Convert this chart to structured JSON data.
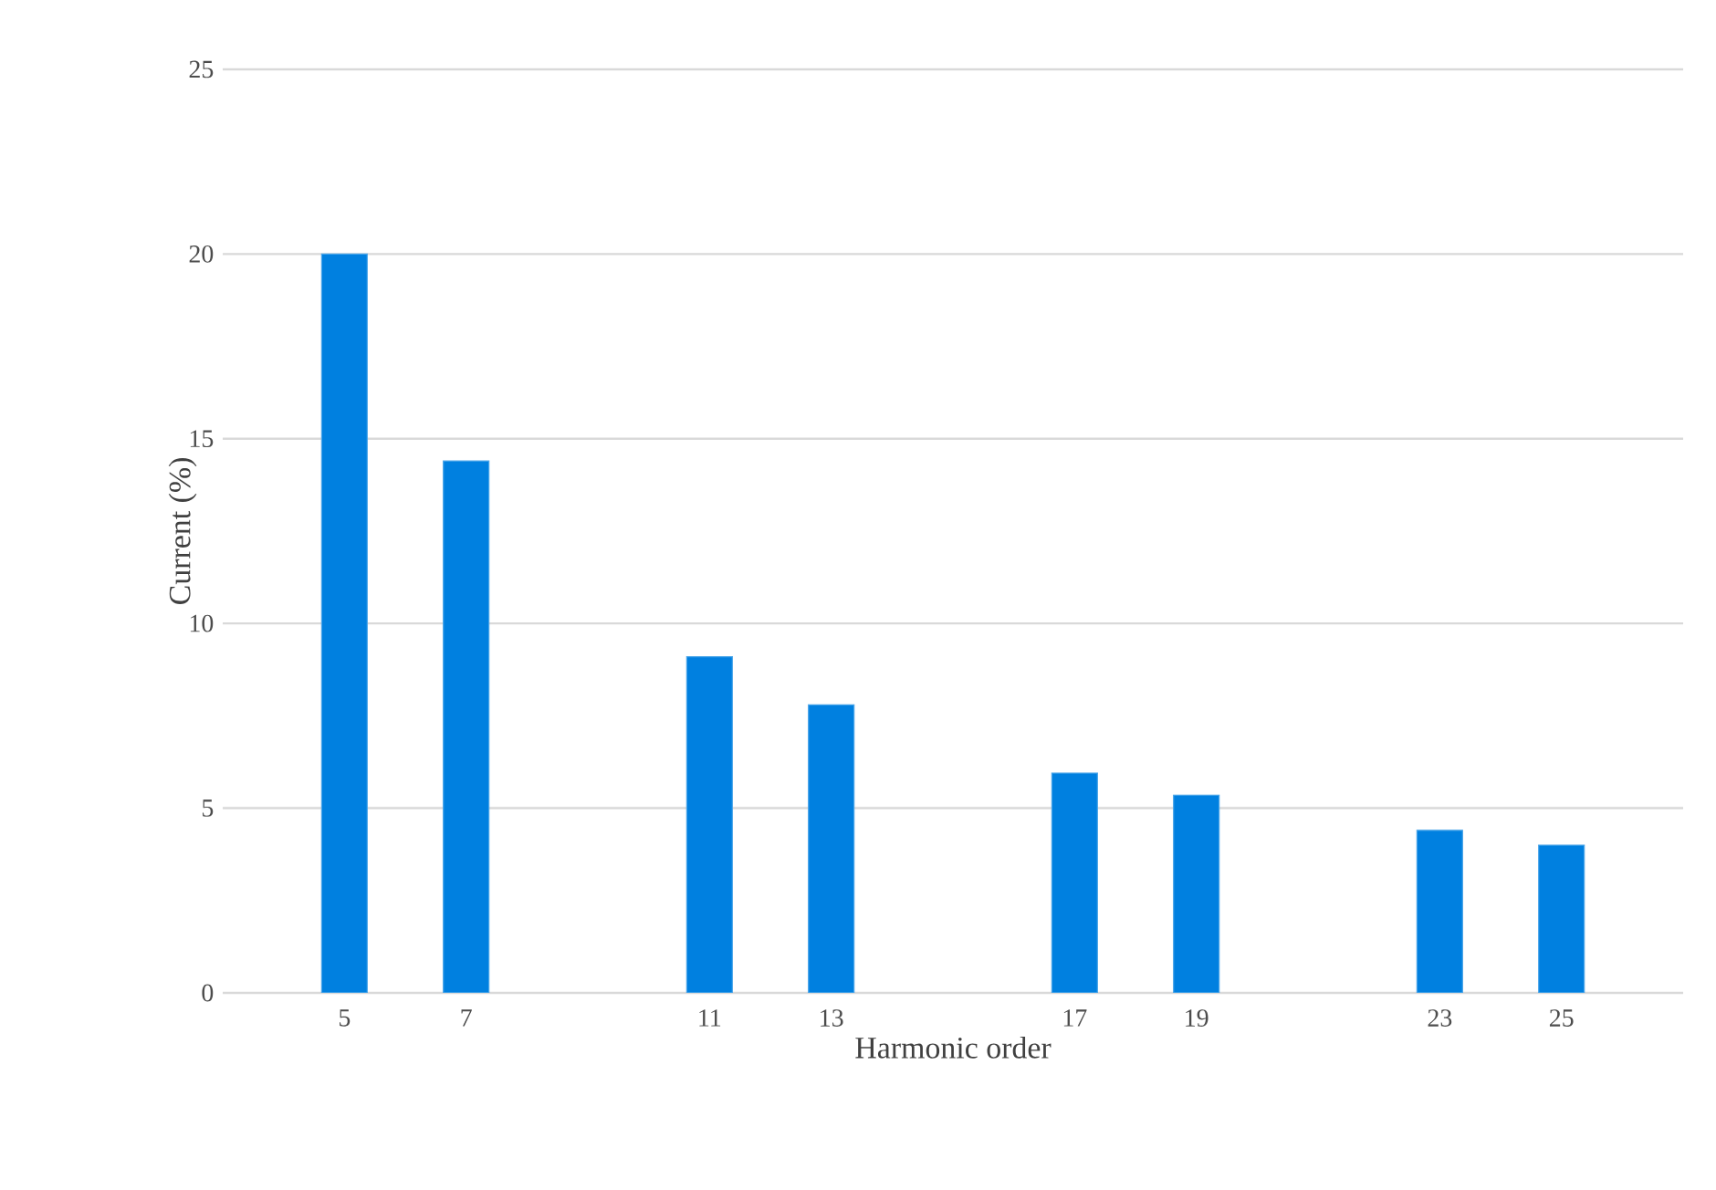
{
  "chart_data": {
    "type": "bar",
    "xlabel": "Harmonic order",
    "ylabel": "Current (%)",
    "categories": [
      "5",
      "7",
      null,
      "11",
      "13",
      null,
      "17",
      "19",
      null,
      "23",
      "25"
    ],
    "values": [
      20,
      14.4,
      null,
      9.1,
      7.8,
      null,
      5.95,
      5.35,
      null,
      4.4,
      4.0
    ],
    "color": "#0080e0",
    "ylim": [
      0,
      25
    ],
    "yticks": [
      0,
      5,
      10,
      15,
      20,
      25
    ],
    "grid": "y"
  }
}
